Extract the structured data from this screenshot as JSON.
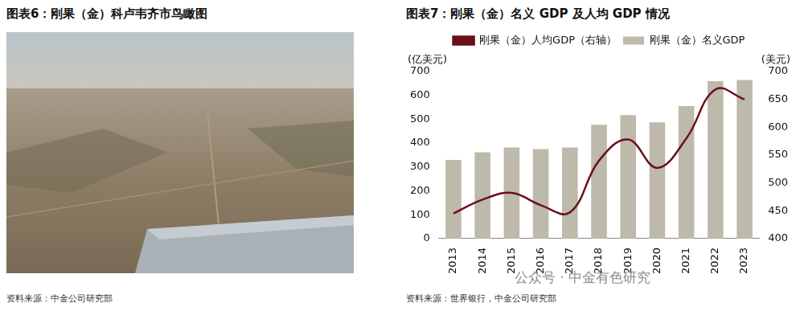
{
  "left_panel": {
    "title": "图表6：刚果（金）科卢韦齐市鸟瞰图",
    "source": "资料来源：中金公司研究部"
  },
  "watermark": "公众号 · 中金有色研究",
  "chart_data": {
    "type": "bar",
    "title": "图表7：刚果（金）名义 GDP 及人均 GDP 情况",
    "source": "资料来源：世界银行，中金公司研究部",
    "y_label": "(亿美元)",
    "y2_label": "(美元)",
    "categories": [
      "2013",
      "2014",
      "2015",
      "2016",
      "2017",
      "2018",
      "2019",
      "2020",
      "2021",
      "2022",
      "2023"
    ],
    "series": [
      {
        "name": "刚果（金）名义GDP",
        "type": "bar",
        "color": "#bdb9ab",
        "values": [
          330,
          362,
          382,
          375,
          382,
          477,
          517,
          487,
          555,
          660,
          665
        ]
      },
      {
        "name": "刚果（金）人均GDP（右轴）",
        "type": "line",
        "axis": "y2",
        "color": "#6b0f1a",
        "values": [
          445,
          470,
          482,
          460,
          447,
          540,
          578,
          527,
          580,
          668,
          650
        ]
      }
    ],
    "ylim": [
      0,
      700
    ],
    "yticks": [
      0,
      100,
      200,
      300,
      400,
      500,
      600,
      700
    ],
    "y2lim": [
      400,
      700
    ],
    "y2ticks": [
      400,
      450,
      500,
      550,
      600,
      650,
      700
    ],
    "legend": "top",
    "grid": false
  }
}
